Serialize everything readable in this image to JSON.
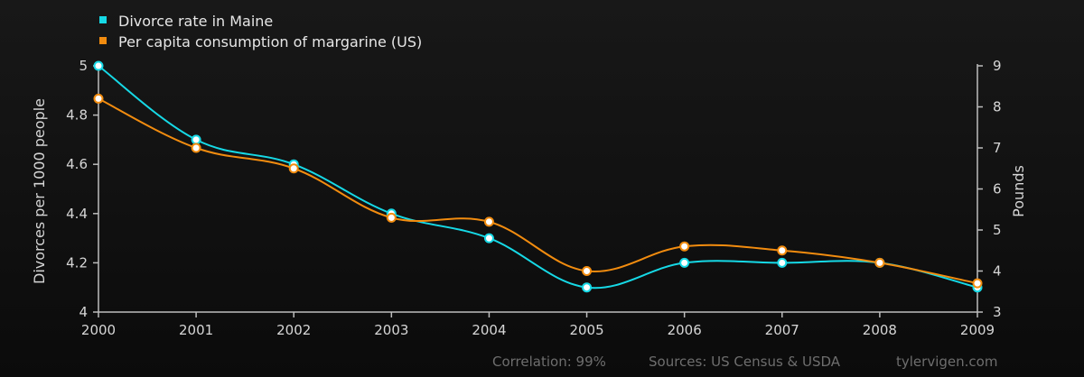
{
  "chart_data": {
    "type": "line",
    "categories": [
      "2000",
      "2001",
      "2002",
      "2003",
      "2004",
      "2005",
      "2006",
      "2007",
      "2008",
      "2009"
    ],
    "series": [
      {
        "name": "Divorce rate in Maine",
        "axis": "left",
        "color": "#16d9e6",
        "values": [
          5.0,
          4.7,
          4.6,
          4.4,
          4.3,
          4.1,
          4.2,
          4.2,
          4.2,
          4.1
        ]
      },
      {
        "name": "Per capita consumption of margarine (US)",
        "axis": "right",
        "color": "#f28c0f",
        "values": [
          8.2,
          7.0,
          6.5,
          5.3,
          5.2,
          4.0,
          4.6,
          4.5,
          4.2,
          3.7
        ]
      }
    ],
    "ylabel_left": "Divorces per 1000 people",
    "ylabel_right": "Pounds",
    "ylim_left": [
      4,
      5
    ],
    "ylim_right": [
      3,
      9
    ],
    "yticks_left": [
      "4",
      "4.2",
      "4.4",
      "4.6",
      "4.8",
      "5"
    ],
    "yticks_right": [
      "3",
      "4",
      "5",
      "6",
      "7",
      "8",
      "9"
    ],
    "legend_position": "top-left",
    "grid": false
  },
  "footer": {
    "correlation": "Correlation: 99%",
    "sources": "Sources: US Census & USDA",
    "site": "tylervigen.com"
  }
}
